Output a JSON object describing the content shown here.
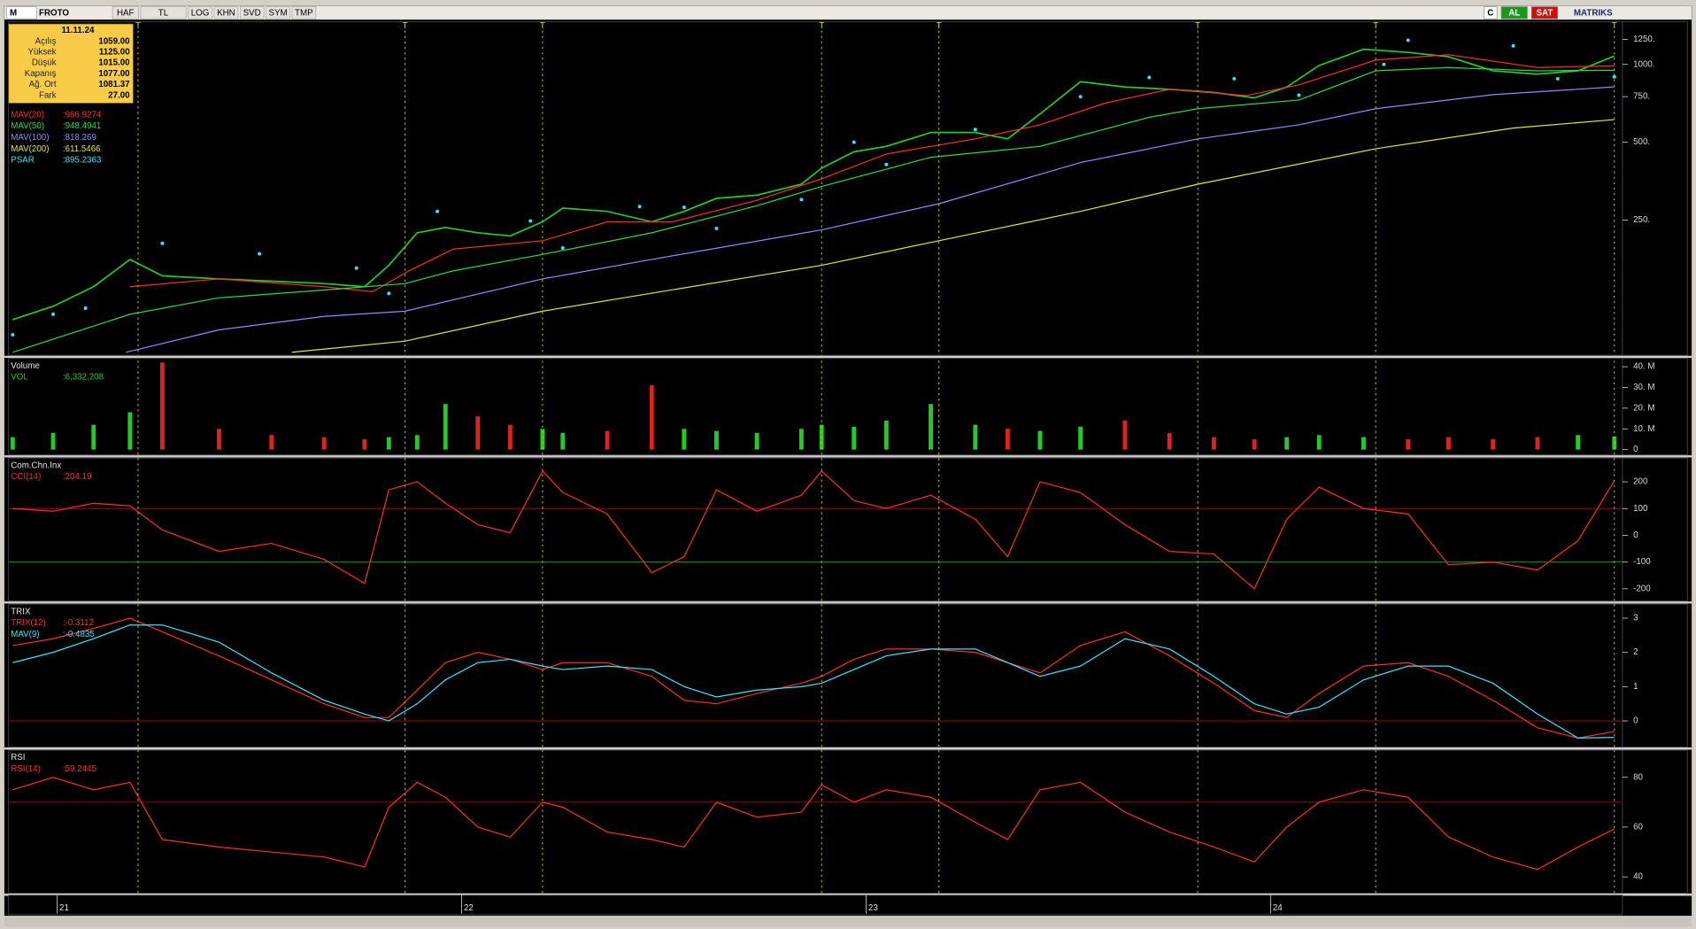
{
  "toolbar": {
    "logo": "M",
    "symbol": "FROTO",
    "buttons": [
      "HAF",
      "TL",
      "LOG",
      "KHN",
      "SVD",
      "SYM",
      "TMP"
    ],
    "actions": [
      "C",
      "AL",
      "SAT"
    ],
    "brand": "MATRIKS"
  },
  "info_box": {
    "date": "11.11.24",
    "rows": [
      {
        "label": "Açılış",
        "value": "1059.00"
      },
      {
        "label": "Yüksek",
        "value": "1125.00"
      },
      {
        "label": "Düşük",
        "value": "1015.00"
      },
      {
        "label": "Kapanış",
        "value": "1077.00"
      },
      {
        "label": "Ağ. Ort",
        "value": "1081.37"
      },
      {
        "label": "Fark",
        "value": "27.00"
      }
    ]
  },
  "chart_data": [
    {
      "type": "line",
      "log_scale": true,
      "x": [
        2020.89,
        2020.99,
        2021.09,
        2021.18,
        2021.26,
        2021.4,
        2021.53,
        2021.66,
        2021.76,
        2021.82,
        2021.89,
        2021.96,
        2022.04,
        2022.12,
        2022.2,
        2022.25,
        2022.36,
        2022.47,
        2022.55,
        2022.63,
        2022.73,
        2022.84,
        2022.89,
        2022.97,
        2023.05,
        2023.16,
        2023.27,
        2023.35,
        2023.43,
        2023.53,
        2023.64,
        2023.75,
        2023.86,
        2023.96,
        2024.04,
        2024.12,
        2024.23,
        2024.34,
        2024.44,
        2024.55,
        2024.66,
        2024.76,
        2024.85
      ],
      "xlim": [
        2020.88,
        2024.87
      ],
      "ylim": [
        75,
        1460
      ],
      "yticks": [
        {
          "value": 1250,
          "label": "1250."
        },
        {
          "value": 1000,
          "label": "1000."
        },
        {
          "value": 750,
          "label": "750."
        },
        {
          "value": 500,
          "label": "500."
        },
        {
          "value": 250,
          "label": "250."
        }
      ],
      "events": [
        {
          "x": 2021.2,
          "label": "T"
        },
        {
          "x": 2021.86,
          "label": "T"
        },
        {
          "x": 2022.2,
          "label": "T"
        },
        {
          "x": 2022.89,
          "label": "T"
        },
        {
          "x": 2023.18,
          "label": "T"
        },
        {
          "x": 2023.82,
          "label": "T"
        },
        {
          "x": 2024.26,
          "label": "T"
        },
        {
          "x": 2024.85,
          "label": "T"
        }
      ],
      "series": [
        {
          "color": "#22cc22",
          "values": [
            103,
            116,
            138,
            176,
            152,
            148,
            145,
            142,
            138,
            167,
            223,
            234,
            223,
            217,
            246,
            278,
            270,
            246,
            270,
            303,
            312,
            344,
            397,
            459,
            482,
            545,
            545,
            515,
            643,
            857,
            817,
            801,
            779,
            742,
            817,
            990,
            1144,
            1112,
            1070,
            944,
            917,
            944,
            1077
          ]
        },
        {
          "name": "MAV(20)",
          "color": "#ff2a2a",
          "last_label": ":986.9274",
          "x": [
            2021.18,
            2021.4,
            2021.66,
            2021.78,
            2021.87,
            2021.98,
            2022.2,
            2022.36,
            2022.52,
            2022.73,
            2022.89,
            2023.05,
            2023.27,
            2023.43,
            2023.59,
            2023.75,
            2023.94,
            2024.07,
            2024.26,
            2024.44,
            2024.66,
            2024.85
          ],
          "values": [
            138,
            148,
            138,
            132,
            159,
            193,
            208,
            246,
            246,
            298,
            361,
            450,
            515,
            584,
            707,
            801,
            757,
            833,
            1039,
            1090,
            972,
            986.9274
          ]
        },
        {
          "name": "MAV(50)",
          "color": "#22dd44",
          "last_label": ":948.4941",
          "x": [
            2020.89,
            2021.18,
            2021.4,
            2021.66,
            2021.86,
            2021.98,
            2022.2,
            2022.47,
            2022.73,
            2022.89,
            2023.16,
            2023.43,
            2023.7,
            2023.82,
            2024.07,
            2024.26,
            2024.44,
            2024.66,
            2024.85
          ],
          "values": [
            77,
            108,
            125,
            134,
            142,
            159,
            184,
            223,
            284,
            337,
            437,
            482,
            624,
            674,
            728,
            944,
            972,
            944,
            948.4941
          ]
        },
        {
          "name": "MAV(100)",
          "color": "#8c8cff",
          "last_label": ":818.269",
          "x": [
            2021.17,
            2021.4,
            2021.66,
            2021.86,
            2022.2,
            2022.47,
            2022.89,
            2023.18,
            2023.53,
            2023.82,
            2024.07,
            2024.26,
            2024.55,
            2024.85
          ],
          "values": [
            77,
            94,
            106,
            111,
            148,
            176,
            229,
            289,
            417,
            515,
            584,
            674,
            764,
            818.269
          ]
        },
        {
          "name": "MAV(200)",
          "color": "#e6e630",
          "last_label": ":611.5466",
          "x": [
            2021.58,
            2021.86,
            2022.2,
            2022.89,
            2023.18,
            2023.53,
            2023.82,
            2024.26,
            2024.6,
            2024.85
          ],
          "values": [
            77,
            85,
            111,
            167,
            208,
            270,
            344,
            472,
            567,
            611.5466
          ]
        },
        {
          "name": "PSAR",
          "color": "#33e6ff",
          "style": "dots",
          "last_label": ":895.2363",
          "x": [
            2020.89,
            2020.99,
            2021.07,
            2021.26,
            2021.5,
            2021.74,
            2021.82,
            2021.94,
            2022.17,
            2022.25,
            2022.44,
            2022.55,
            2022.63,
            2022.84,
            2022.97,
            2023.05,
            2023.27,
            2023.53,
            2023.7,
            2023.91,
            2024.07,
            2024.28,
            2024.34,
            2024.6,
            2024.71,
            2024.85
          ],
          "values": [
            90,
            108,
            114,
            203,
            185,
            163,
            130,
            270,
            248,
            195,
            282,
            280,
            232,
            300,
            500,
            410,
            560,
            750,
            890,
            880,
            760,
            1000,
            1240,
            1180,
            880,
            895.2363
          ]
        }
      ]
    },
    {
      "type": "bar",
      "title": "Volume",
      "x": [
        2020.89,
        2020.99,
        2021.09,
        2021.18,
        2021.26,
        2021.4,
        2021.53,
        2021.66,
        2021.76,
        2021.82,
        2021.89,
        2021.96,
        2022.04,
        2022.12,
        2022.2,
        2022.25,
        2022.36,
        2022.47,
        2022.55,
        2022.63,
        2022.73,
        2022.84,
        2022.89,
        2022.97,
        2023.05,
        2023.16,
        2023.27,
        2023.35,
        2023.43,
        2023.53,
        2023.64,
        2023.75,
        2023.86,
        2023.96,
        2024.04,
        2024.12,
        2024.23,
        2024.34,
        2024.44,
        2024.55,
        2024.66,
        2024.76,
        2024.85
      ],
      "xlim": [
        2020.88,
        2024.87
      ],
      "ylim": [
        -2500000,
        44000000
      ],
      "yticks": [
        {
          "value": 40000000,
          "label": "40. M"
        },
        {
          "value": 30000000,
          "label": "30. M"
        },
        {
          "value": 20000000,
          "label": "20. M"
        },
        {
          "value": 10000000,
          "label": "10. M"
        },
        0
      ],
      "series": [
        {
          "name": "VOL",
          "color": "#22cc22",
          "down_color": "#dd2222",
          "last_label": ":6,332,208",
          "values": [
            6000000,
            8000000,
            12000000,
            18000000,
            42000000,
            10000000,
            7000000,
            6000000,
            5000000,
            6000000,
            7000000,
            22000000,
            16000000,
            12000000,
            10000000,
            8000000,
            9000000,
            31000000,
            10000000,
            9000000,
            8000000,
            10000000,
            12000000,
            11000000,
            14000000,
            22000000,
            12000000,
            10000000,
            9000000,
            11000000,
            14000000,
            8000000,
            6000000,
            5000000,
            6000000,
            7000000,
            6000000,
            5000000,
            6000000,
            5000000,
            6000000,
            7000000,
            6332208
          ]
        }
      ]
    },
    {
      "type": "line",
      "title": "Com.Chn.Inx",
      "x": [
        2020.89,
        2020.99,
        2021.09,
        2021.18,
        2021.26,
        2021.4,
        2021.53,
        2021.66,
        2021.76,
        2021.82,
        2021.89,
        2021.96,
        2022.04,
        2022.12,
        2022.2,
        2022.25,
        2022.36,
        2022.47,
        2022.55,
        2022.63,
        2022.73,
        2022.84,
        2022.89,
        2022.97,
        2023.05,
        2023.16,
        2023.27,
        2023.35,
        2023.43,
        2023.53,
        2023.64,
        2023.75,
        2023.86,
        2023.96,
        2024.04,
        2024.12,
        2024.23,
        2024.34,
        2024.44,
        2024.55,
        2024.66,
        2024.76,
        2024.85
      ],
      "xlim": [
        2020.88,
        2024.87
      ],
      "ylim": [
        -245,
        289
      ],
      "yticks": [
        200,
        100,
        0,
        -100,
        -200
      ],
      "ref_lines": [
        {
          "value": 100,
          "color": "#b00000"
        },
        {
          "value": -100,
          "color": "#00a000"
        }
      ],
      "series": [
        {
          "name": "CCI(14)",
          "color": "#ff2a2a",
          "last_label": ":204.19",
          "values": [
            100,
            90,
            120,
            110,
            20,
            -60,
            -30,
            -90,
            -180,
            170,
            200,
            120,
            40,
            10,
            240,
            160,
            80,
            -140,
            -80,
            170,
            90,
            150,
            240,
            130,
            100,
            150,
            60,
            -80,
            200,
            160,
            40,
            -60,
            -70,
            -200,
            60,
            180,
            100,
            80,
            -110,
            -100,
            -130,
            -20,
            204.19
          ]
        }
      ]
    },
    {
      "type": "line",
      "title": "TRIX",
      "x": [
        2020.89,
        2020.99,
        2021.09,
        2021.18,
        2021.26,
        2021.4,
        2021.53,
        2021.66,
        2021.76,
        2021.82,
        2021.89,
        2021.96,
        2022.04,
        2022.12,
        2022.2,
        2022.25,
        2022.36,
        2022.47,
        2022.55,
        2022.63,
        2022.73,
        2022.84,
        2022.89,
        2022.97,
        2023.05,
        2023.16,
        2023.27,
        2023.35,
        2023.43,
        2023.53,
        2023.64,
        2023.75,
        2023.86,
        2023.96,
        2024.04,
        2024.12,
        2024.23,
        2024.34,
        2024.44,
        2024.55,
        2024.66,
        2024.76,
        2024.85
      ],
      "xlim": [
        2020.88,
        2024.87
      ],
      "ylim": [
        -0.76,
        3.41
      ],
      "yticks": [
        3,
        2,
        1,
        0
      ],
      "ref_lines": [
        {
          "value": 0,
          "color": "#b00000"
        }
      ],
      "series": [
        {
          "name": "TRIX(12)",
          "color": "#ff2a2a",
          "last_label": ":-0.3112",
          "values": [
            2.2,
            2.4,
            2.7,
            3.0,
            2.6,
            1.9,
            1.2,
            0.5,
            0.1,
            0.1,
            0.9,
            1.7,
            2.0,
            1.8,
            1.5,
            1.7,
            1.7,
            1.3,
            0.6,
            0.5,
            0.8,
            1.1,
            1.3,
            1.8,
            2.1,
            2.1,
            2.0,
            1.7,
            1.4,
            2.2,
            2.6,
            1.9,
            1.1,
            0.3,
            0.1,
            0.8,
            1.6,
            1.7,
            1.3,
            0.6,
            -0.2,
            -0.5,
            -0.3112
          ]
        },
        {
          "name": "MAV(9)",
          "color": "#33e6ff",
          "last_label": ":-0.4835",
          "values": [
            1.7,
            2.0,
            2.4,
            2.8,
            2.8,
            2.3,
            1.4,
            0.6,
            0.2,
            0.0,
            0.5,
            1.2,
            1.7,
            1.8,
            1.6,
            1.5,
            1.6,
            1.5,
            1.0,
            0.7,
            0.9,
            1.0,
            1.1,
            1.5,
            1.9,
            2.1,
            2.1,
            1.7,
            1.3,
            1.6,
            2.4,
            2.1,
            1.3,
            0.5,
            0.2,
            0.4,
            1.2,
            1.6,
            1.6,
            1.1,
            0.2,
            -0.5,
            -0.4835
          ]
        }
      ]
    },
    {
      "type": "line",
      "title": "RSI",
      "x": [
        2020.89,
        2020.99,
        2021.09,
        2021.18,
        2021.26,
        2021.4,
        2021.53,
        2021.66,
        2021.76,
        2021.82,
        2021.89,
        2021.96,
        2022.04,
        2022.12,
        2022.2,
        2022.25,
        2022.36,
        2022.47,
        2022.55,
        2022.63,
        2022.73,
        2022.84,
        2022.89,
        2022.97,
        2023.05,
        2023.16,
        2023.27,
        2023.35,
        2023.43,
        2023.53,
        2023.64,
        2023.75,
        2023.86,
        2023.96,
        2024.04,
        2024.12,
        2024.23,
        2024.34,
        2024.44,
        2024.55,
        2024.66,
        2024.76,
        2024.85
      ],
      "xlim": [
        2020.88,
        2024.87
      ],
      "ylim": [
        33.5,
        90.9
      ],
      "yticks": [
        80,
        60,
        40
      ],
      "xticks": [
        {
          "value": 2021,
          "label": "21"
        },
        {
          "value": 2022,
          "label": "22"
        },
        {
          "value": 2023,
          "label": "23"
        },
        {
          "value": 2024,
          "label": "24"
        }
      ],
      "ref_lines": [
        {
          "value": 70,
          "color": "#b00000"
        }
      ],
      "series": [
        {
          "name": "RSI(14)",
          "color": "#ff2a2a",
          "last_label": ":59.2445",
          "values": [
            75,
            80,
            75,
            78,
            55,
            52,
            50,
            48,
            44,
            68,
            78,
            72,
            60,
            56,
            70,
            68,
            58,
            55,
            52,
            70,
            64,
            66,
            77,
            70,
            75,
            72,
            62,
            55,
            75,
            78,
            66,
            58,
            52,
            46,
            60,
            70,
            75,
            72,
            56,
            48,
            43,
            52,
            59.2445
          ]
        }
      ]
    }
  ]
}
